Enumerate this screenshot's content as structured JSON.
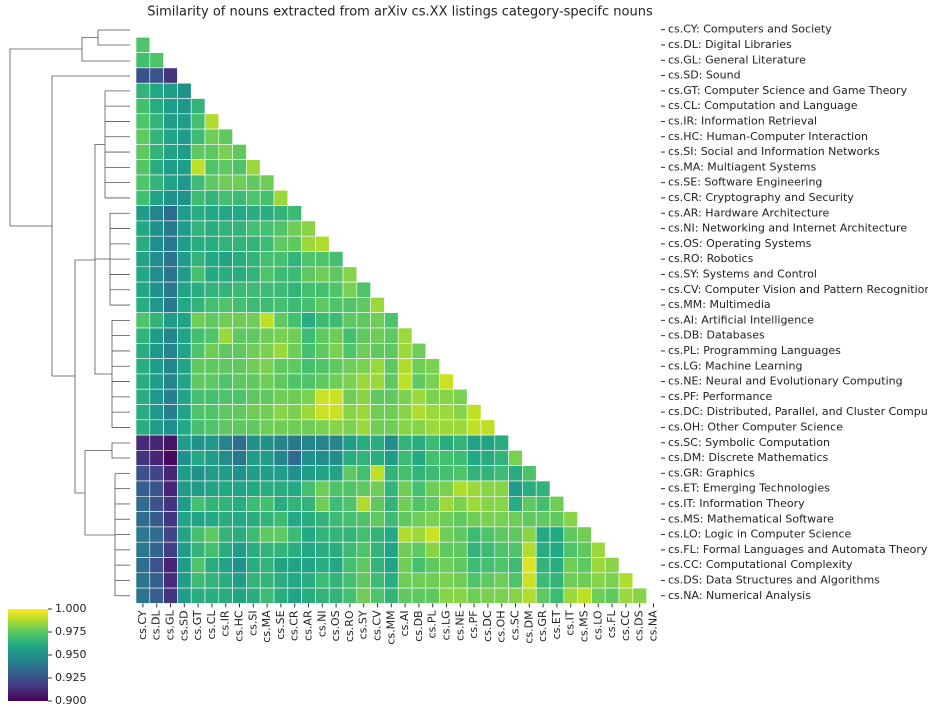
{
  "chart_data": {
    "type": "heatmap",
    "title": "Similarity of nouns extracted from arXiv cs.XX listings category-specifc nouns",
    "colormap": "viridis",
    "row_labels": [
      "cs.CY: Computers and Society",
      "cs.DL: Digital Libraries",
      "cs.GL: General Literature",
      "cs.SD: Sound",
      "cs.GT: Computer Science and Game Theory",
      "cs.CL: Computation and Language",
      "cs.IR: Information Retrieval",
      "cs.HC: Human-Computer Interaction",
      "cs.SI: Social and Information Networks",
      "cs.MA: Multiagent Systems",
      "cs.SE: Software Engineering",
      "cs.CR: Cryptography and Security",
      "cs.AR: Hardware Architecture",
      "cs.NI: Networking and Internet Architecture",
      "cs.OS: Operating Systems",
      "cs.RO: Robotics",
      "cs.SY: Systems and Control",
      "cs.CV: Computer Vision and Pattern Recognition",
      "cs.MM: Multimedia",
      "cs.AI: Artificial Intelligence",
      "cs.DB: Databases",
      "cs.PL: Programming Languages",
      "cs.LG: Machine Learning",
      "cs.NE: Neural and Evolutionary Computing",
      "cs.PF: Performance",
      "cs.DC: Distributed, Parallel, and Cluster Computing",
      "cs.OH: Other Computer Science",
      "cs.SC: Symbolic Computation",
      "cs.DM: Discrete Mathematics",
      "cs.GR: Graphics",
      "cs.ET: Emerging Technologies",
      "cs.IT: Information Theory",
      "cs.MS: Mathematical Software",
      "cs.LO: Logic in Computer Science",
      "cs.FL: Formal Languages and Automata Theory",
      "cs.CC: Computational Complexity",
      "cs.DS: Data Structures and Algorithms",
      "cs.NA: Numerical Analysis"
    ],
    "col_labels": [
      "cs.CY",
      "cs.DL",
      "cs.GL",
      "cs.SD",
      "cs.GT",
      "cs.CL",
      "cs.IR",
      "cs.HC",
      "cs.SI",
      "cs.MA",
      "cs.SE",
      "cs.CR",
      "cs.AR",
      "cs.NI",
      "cs.OS",
      "cs.RO",
      "cs.SY",
      "cs.CV",
      "cs.MM",
      "cs.AI",
      "cs.DB",
      "cs.PL",
      "cs.LG",
      "cs.NE",
      "cs.PF",
      "cs.DC",
      "cs.OH",
      "cs.SC",
      "cs.DM",
      "cs.GR",
      "cs.ET",
      "cs.IT",
      "cs.MS",
      "cs.LO",
      "cs.FL",
      "cs.CC",
      "cs.DS",
      "cs.NA"
    ],
    "values": [
      [],
      [
        0.972
      ],
      [
        0.97,
        0.972
      ],
      [
        0.925,
        0.925,
        0.915
      ],
      [
        0.965,
        0.96,
        0.955,
        0.95
      ],
      [
        0.97,
        0.962,
        0.955,
        0.952,
        0.965
      ],
      [
        0.972,
        0.965,
        0.955,
        0.955,
        0.97,
        0.988
      ],
      [
        0.975,
        0.965,
        0.958,
        0.955,
        0.968,
        0.978,
        0.975
      ],
      [
        0.975,
        0.965,
        0.958,
        0.955,
        0.975,
        0.975,
        0.98,
        0.975
      ],
      [
        0.973,
        0.962,
        0.955,
        0.955,
        0.99,
        0.972,
        0.975,
        0.972,
        0.985
      ],
      [
        0.972,
        0.965,
        0.958,
        0.952,
        0.968,
        0.975,
        0.978,
        0.978,
        0.975,
        0.978
      ],
      [
        0.97,
        0.958,
        0.95,
        0.95,
        0.968,
        0.965,
        0.97,
        0.968,
        0.972,
        0.97,
        0.985
      ],
      [
        0.955,
        0.945,
        0.935,
        0.955,
        0.962,
        0.96,
        0.96,
        0.96,
        0.962,
        0.962,
        0.965,
        0.968
      ],
      [
        0.96,
        0.95,
        0.94,
        0.955,
        0.965,
        0.962,
        0.965,
        0.965,
        0.97,
        0.97,
        0.972,
        0.978,
        0.982
      ],
      [
        0.962,
        0.948,
        0.94,
        0.955,
        0.962,
        0.962,
        0.965,
        0.965,
        0.965,
        0.968,
        0.975,
        0.975,
        0.985,
        0.988
      ],
      [
        0.958,
        0.948,
        0.938,
        0.955,
        0.965,
        0.96,
        0.958,
        0.962,
        0.965,
        0.97,
        0.97,
        0.965,
        0.972,
        0.972,
        0.97
      ],
      [
        0.96,
        0.948,
        0.938,
        0.955,
        0.97,
        0.96,
        0.962,
        0.962,
        0.965,
        0.972,
        0.968,
        0.968,
        0.975,
        0.978,
        0.975,
        0.982
      ],
      [
        0.96,
        0.95,
        0.94,
        0.958,
        0.962,
        0.965,
        0.965,
        0.968,
        0.968,
        0.968,
        0.968,
        0.965,
        0.97,
        0.97,
        0.972,
        0.98,
        0.972
      ],
      [
        0.962,
        0.952,
        0.94,
        0.96,
        0.965,
        0.97,
        0.972,
        0.97,
        0.968,
        0.968,
        0.97,
        0.968,
        0.97,
        0.975,
        0.972,
        0.972,
        0.975,
        0.985
      ],
      [
        0.972,
        0.965,
        0.955,
        0.958,
        0.978,
        0.975,
        0.978,
        0.978,
        0.978,
        0.99,
        0.975,
        0.97,
        0.962,
        0.968,
        0.968,
        0.975,
        0.975,
        0.978,
        0.972
      ],
      [
        0.965,
        0.955,
        0.945,
        0.958,
        0.97,
        0.972,
        0.985,
        0.975,
        0.975,
        0.978,
        0.98,
        0.978,
        0.968,
        0.975,
        0.978,
        0.97,
        0.975,
        0.978,
        0.975,
        0.985
      ],
      [
        0.962,
        0.952,
        0.945,
        0.958,
        0.972,
        0.978,
        0.975,
        0.975,
        0.978,
        0.98,
        0.985,
        0.978,
        0.97,
        0.975,
        0.98,
        0.972,
        0.978,
        0.975,
        0.975,
        0.985,
        0.978
      ],
      [
        0.962,
        0.955,
        0.945,
        0.958,
        0.975,
        0.975,
        0.975,
        0.975,
        0.978,
        0.98,
        0.975,
        0.975,
        0.97,
        0.972,
        0.975,
        0.978,
        0.98,
        0.985,
        0.975,
        0.988,
        0.978,
        0.98
      ],
      [
        0.962,
        0.955,
        0.945,
        0.958,
        0.975,
        0.975,
        0.972,
        0.975,
        0.975,
        0.978,
        0.975,
        0.972,
        0.972,
        0.975,
        0.978,
        0.98,
        0.985,
        0.985,
        0.975,
        0.99,
        0.975,
        0.98,
        0.992
      ],
      [
        0.962,
        0.952,
        0.942,
        0.958,
        0.97,
        0.97,
        0.972,
        0.972,
        0.975,
        0.975,
        0.978,
        0.978,
        0.98,
        0.992,
        0.992,
        0.978,
        0.982,
        0.975,
        0.975,
        0.98,
        0.985,
        0.98,
        0.982,
        0.98
      ],
      [
        0.962,
        0.952,
        0.942,
        0.958,
        0.972,
        0.972,
        0.975,
        0.975,
        0.978,
        0.978,
        0.982,
        0.98,
        0.985,
        0.992,
        0.992,
        0.982,
        0.985,
        0.978,
        0.978,
        0.982,
        0.988,
        0.985,
        0.985,
        0.982,
        0.99
      ],
      [
        0.962,
        0.955,
        0.948,
        0.96,
        0.97,
        0.972,
        0.975,
        0.975,
        0.975,
        0.978,
        0.978,
        0.978,
        0.978,
        0.98,
        0.982,
        0.98,
        0.985,
        0.978,
        0.978,
        0.982,
        0.982,
        0.985,
        0.985,
        0.985,
        0.99,
        0.99
      ],
      [
        0.912,
        0.91,
        0.905,
        0.955,
        0.95,
        0.952,
        0.945,
        0.935,
        0.95,
        0.95,
        0.945,
        0.94,
        0.945,
        0.945,
        0.945,
        0.955,
        0.962,
        0.962,
        0.948,
        0.965,
        0.962,
        0.968,
        0.962,
        0.965,
        0.958,
        0.958,
        0.962
      ],
      [
        0.915,
        0.91,
        0.902,
        0.95,
        0.96,
        0.955,
        0.948,
        0.94,
        0.955,
        0.955,
        0.945,
        0.935,
        0.95,
        0.948,
        0.948,
        0.962,
        0.965,
        0.962,
        0.955,
        0.968,
        0.96,
        0.97,
        0.97,
        0.968,
        0.96,
        0.962,
        0.965,
        0.98
      ],
      [
        0.925,
        0.92,
        0.91,
        0.955,
        0.95,
        0.955,
        0.955,
        0.95,
        0.955,
        0.955,
        0.955,
        0.95,
        0.955,
        0.958,
        0.958,
        0.975,
        0.97,
        0.99,
        0.965,
        0.97,
        0.965,
        0.968,
        0.97,
        0.972,
        0.965,
        0.965,
        0.968,
        0.962,
        0.972
      ],
      [
        0.93,
        0.925,
        0.91,
        0.955,
        0.955,
        0.958,
        0.96,
        0.958,
        0.96,
        0.962,
        0.962,
        0.96,
        0.97,
        0.978,
        0.972,
        0.972,
        0.975,
        0.978,
        0.965,
        0.978,
        0.97,
        0.978,
        0.98,
        0.988,
        0.985,
        0.982,
        0.982,
        0.955,
        0.962,
        0.965
      ],
      [
        0.935,
        0.925,
        0.915,
        0.955,
        0.97,
        0.965,
        0.965,
        0.962,
        0.968,
        0.97,
        0.962,
        0.965,
        0.965,
        0.978,
        0.968,
        0.972,
        0.988,
        0.975,
        0.965,
        0.978,
        0.972,
        0.975,
        0.985,
        0.98,
        0.985,
        0.982,
        0.982,
        0.962,
        0.975,
        0.97,
        0.978
      ],
      [
        0.935,
        0.928,
        0.915,
        0.958,
        0.958,
        0.96,
        0.962,
        0.96,
        0.962,
        0.965,
        0.968,
        0.96,
        0.962,
        0.965,
        0.968,
        0.97,
        0.972,
        0.975,
        0.968,
        0.975,
        0.978,
        0.98,
        0.978,
        0.975,
        0.978,
        0.98,
        0.98,
        0.978,
        0.975,
        0.975,
        0.975,
        0.982
      ],
      [
        0.94,
        0.935,
        0.92,
        0.958,
        0.97,
        0.975,
        0.965,
        0.962,
        0.968,
        0.975,
        0.975,
        0.968,
        0.96,
        0.965,
        0.965,
        0.965,
        0.97,
        0.965,
        0.96,
        0.988,
        0.985,
        0.992,
        0.978,
        0.975,
        0.968,
        0.972,
        0.975,
        0.975,
        0.982,
        0.96,
        0.96,
        0.975,
        0.978
      ],
      [
        0.94,
        0.932,
        0.918,
        0.955,
        0.965,
        0.97,
        0.962,
        0.955,
        0.962,
        0.965,
        0.965,
        0.962,
        0.96,
        0.962,
        0.962,
        0.968,
        0.972,
        0.965,
        0.958,
        0.978,
        0.975,
        0.982,
        0.975,
        0.975,
        0.965,
        0.968,
        0.972,
        0.972,
        0.988,
        0.962,
        0.96,
        0.972,
        0.975,
        0.985
      ],
      [
        0.935,
        0.925,
        0.91,
        0.955,
        0.972,
        0.962,
        0.958,
        0.95,
        0.962,
        0.965,
        0.958,
        0.958,
        0.958,
        0.962,
        0.96,
        0.97,
        0.975,
        0.965,
        0.958,
        0.978,
        0.97,
        0.975,
        0.978,
        0.975,
        0.968,
        0.97,
        0.972,
        0.968,
        0.995,
        0.965,
        0.962,
        0.978,
        0.975,
        0.985,
        0.982
      ],
      [
        0.938,
        0.93,
        0.912,
        0.955,
        0.968,
        0.965,
        0.962,
        0.955,
        0.965,
        0.965,
        0.962,
        0.96,
        0.962,
        0.968,
        0.965,
        0.97,
        0.975,
        0.968,
        0.962,
        0.978,
        0.978,
        0.978,
        0.98,
        0.978,
        0.972,
        0.975,
        0.978,
        0.972,
        0.992,
        0.968,
        0.965,
        0.978,
        0.978,
        0.982,
        0.98,
        0.988
      ],
      [
        0.938,
        0.93,
        0.915,
        0.955,
        0.962,
        0.962,
        0.962,
        0.958,
        0.962,
        0.968,
        0.962,
        0.958,
        0.962,
        0.965,
        0.965,
        0.97,
        0.978,
        0.972,
        0.965,
        0.975,
        0.975,
        0.975,
        0.982,
        0.982,
        0.978,
        0.98,
        0.98,
        0.982,
        0.988,
        0.975,
        0.968,
        0.985,
        0.99,
        0.978,
        0.975,
        0.985,
        0.982
      ]
    ],
    "clim": [
      0.9,
      1.0
    ],
    "cticks": [
      {
        "value": 0.9,
        "label": "0.900"
      },
      {
        "value": 0.925,
        "label": "0.925"
      },
      {
        "value": 0.95,
        "label": "0.950"
      },
      {
        "value": 0.975,
        "label": "0.975"
      },
      {
        "value": 1.0,
        "label": "1.000"
      }
    ]
  }
}
